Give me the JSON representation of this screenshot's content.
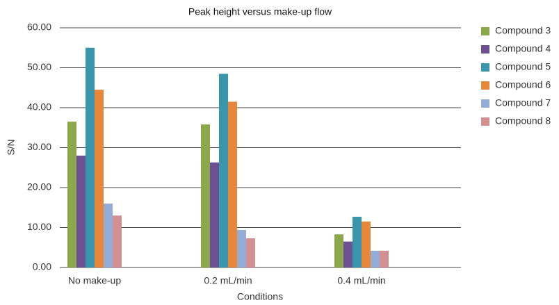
{
  "chart_data": {
    "type": "bar",
    "title": "Peak height versus make-up flow",
    "x_label": "Conditions",
    "y_label": "S/N",
    "categories": [
      "No make-up",
      "0.2 mL/min",
      "0.4 mL/min"
    ],
    "series": [
      {
        "name": "Compound 3",
        "color": "#8ba94a",
        "values": [
          36.5,
          35.8,
          8.3
        ]
      },
      {
        "name": "Compound 4",
        "color": "#6c5190",
        "values": [
          28,
          26.3,
          6.5
        ]
      },
      {
        "name": "Compound 5",
        "color": "#3a96aa",
        "values": [
          55,
          48.5,
          12.7
        ]
      },
      {
        "name": "Compound 6",
        "color": "#e8863a",
        "values": [
          44.5,
          41.5,
          11.5
        ]
      },
      {
        "name": "Compound 7",
        "color": "#95acd6",
        "values": [
          16,
          9.4,
          4.2
        ]
      },
      {
        "name": "Compound 8",
        "color": "#d49090",
        "values": [
          13,
          7.3,
          4.2
        ]
      }
    ],
    "ylim": [
      0,
      60
    ],
    "yticks": [
      {
        "value": 0,
        "label": "0.00"
      },
      {
        "value": 10,
        "label": "10.00"
      },
      {
        "value": 20,
        "label": "20.00"
      },
      {
        "value": 30,
        "label": "30.00"
      },
      {
        "value": 40,
        "label": "40.00"
      },
      {
        "value": 50,
        "label": "50.00"
      },
      {
        "value": 60,
        "label": "60.00"
      }
    ],
    "grid": true,
    "legend": "right"
  }
}
